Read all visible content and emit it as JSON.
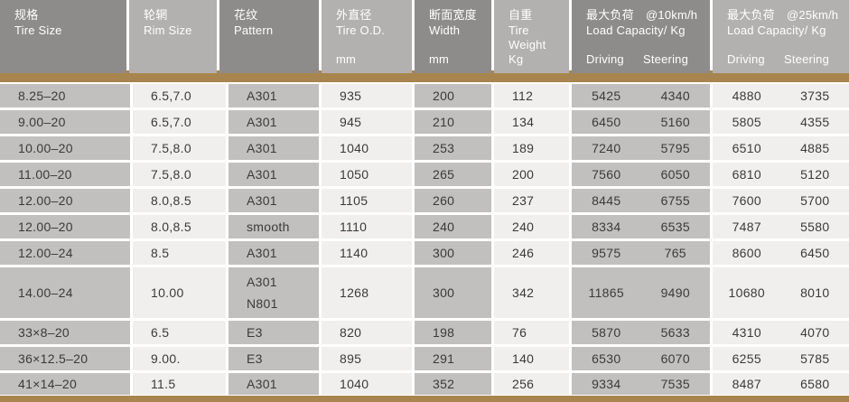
{
  "colors": {
    "header_dark": "#8d8c8a",
    "header_light": "#b3b1af",
    "cell_dark": "#c1c0be",
    "cell_light": "#f1efee",
    "accent": "#a8854e",
    "text": "#3a3a3a"
  },
  "chart_data": {
    "type": "table",
    "columns": [
      {
        "zh": "规格",
        "en": "Tire Size",
        "unit": ""
      },
      {
        "zh": "轮辋",
        "en": "Rim Size",
        "unit": ""
      },
      {
        "zh": "花纹",
        "en": "Pattern",
        "unit": ""
      },
      {
        "zh": "外直径",
        "en": "Tire O.D.",
        "unit": "mm"
      },
      {
        "zh": "断面宽度",
        "en": "Width",
        "unit": "mm"
      },
      {
        "zh": "自重",
        "en": "Tire Weight",
        "unit": "Kg"
      },
      {
        "zh": "最大负荷　@10km/h",
        "en": "Load Capacity/  Kg",
        "sub": [
          "Driving",
          "Steering"
        ]
      },
      {
        "zh": "最大负荷　@25km/h",
        "en": "Load Capacity/  Kg",
        "sub": [
          "Driving",
          "Steering"
        ]
      }
    ],
    "rows": [
      {
        "tire_size": "8.25–20",
        "rim_size": "6.5,7.0",
        "pattern": [
          "A301"
        ],
        "tire_od": "935",
        "width": "200",
        "weight": "112",
        "load_10kmh": [
          "5425",
          "4340"
        ],
        "load_25kmh": [
          "4880",
          "3735"
        ]
      },
      {
        "tire_size": "9.00–20",
        "rim_size": "6.5,7.0",
        "pattern": [
          "A301"
        ],
        "tire_od": "945",
        "width": "210",
        "weight": "134",
        "load_10kmh": [
          "6450",
          "5160"
        ],
        "load_25kmh": [
          "5805",
          "4355"
        ]
      },
      {
        "tire_size": "10.00–20",
        "rim_size": "7.5,8.0",
        "pattern": [
          "A301"
        ],
        "tire_od": "1040",
        "width": "253",
        "weight": "189",
        "load_10kmh": [
          "7240",
          "5795"
        ],
        "load_25kmh": [
          "6510",
          "4885"
        ]
      },
      {
        "tire_size": "11.00–20",
        "rim_size": "7.5,8.0",
        "pattern": [
          "A301"
        ],
        "tire_od": "1050",
        "width": "265",
        "weight": "200",
        "load_10kmh": [
          "7560",
          "6050"
        ],
        "load_25kmh": [
          "6810",
          "5120"
        ]
      },
      {
        "tire_size": "12.00–20",
        "rim_size": "8.0,8.5",
        "pattern": [
          "A301"
        ],
        "tire_od": "1105",
        "width": "260",
        "weight": "237",
        "load_10kmh": [
          "8445",
          "6755"
        ],
        "load_25kmh": [
          "7600",
          "5700"
        ]
      },
      {
        "tire_size": "12.00–20",
        "rim_size": "8.0,8.5",
        "pattern": [
          "smooth"
        ],
        "tire_od": "1110",
        "width": "240",
        "weight": "240",
        "load_10kmh": [
          "8334",
          "6535"
        ],
        "load_25kmh": [
          "7487",
          "5580"
        ]
      },
      {
        "tire_size": "12.00–24",
        "rim_size": "8.5",
        "pattern": [
          "A301"
        ],
        "tire_od": "1140",
        "width": "300",
        "weight": "246",
        "load_10kmh": [
          "9575",
          "765"
        ],
        "load_25kmh": [
          "8600",
          "6450"
        ]
      },
      {
        "tire_size": "14.00–24",
        "rim_size": "10.00",
        "pattern": [
          "A301",
          "N801"
        ],
        "tire_od": "1268",
        "width": "300",
        "weight": "342",
        "load_10kmh": [
          "11865",
          "9490"
        ],
        "load_25kmh": [
          "10680",
          "8010"
        ]
      },
      {
        "tire_size": "33×8–20",
        "rim_size": "6.5",
        "pattern": [
          "E3"
        ],
        "tire_od": "820",
        "width": "198",
        "weight": "76",
        "load_10kmh": [
          "5870",
          "5633"
        ],
        "load_25kmh": [
          "4310",
          "4070"
        ]
      },
      {
        "tire_size": "36×12.5–20",
        "rim_size": "9.00.",
        "pattern": [
          "E3"
        ],
        "tire_od": "895",
        "width": "291",
        "weight": "140",
        "load_10kmh": [
          "6530",
          "6070"
        ],
        "load_25kmh": [
          "6255",
          "5785"
        ]
      },
      {
        "tire_size": "41×14–20",
        "rim_size": "11.5",
        "pattern": [
          "A301"
        ],
        "tire_od": "1040",
        "width": "352",
        "weight": "256",
        "load_10kmh": [
          "9334",
          "7535"
        ],
        "load_25kmh": [
          "8487",
          "6580"
        ]
      }
    ]
  }
}
